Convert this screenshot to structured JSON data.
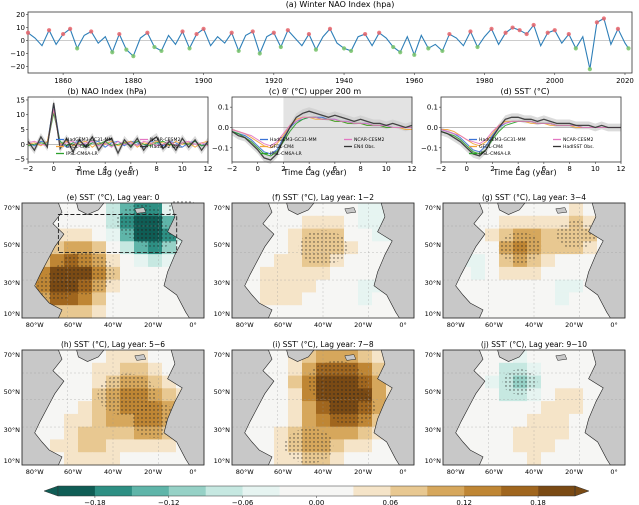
{
  "colors": {
    "line_main": "#2e7fb8",
    "pos_marker": "#e8646a",
    "neg_marker": "#79c36a",
    "hadgem": "#3a73d6",
    "gfdl": "#f2a33a",
    "ipsl": "#2ca02c",
    "ncar": "#e377c2",
    "obs": "#333333",
    "shade": "#cccccc",
    "land": "#c8c8c8",
    "ocean_neutral": "#f4f4f1",
    "brown": "#a0661e",
    "teal": "#2d8f83"
  },
  "panels": {
    "a": {
      "title": "(a) Winter NAO Index (hpa)",
      "x_ticks": [
        "1860",
        "1880",
        "1900",
        "1920",
        "1940",
        "1960",
        "1980",
        "2000",
        "2020"
      ],
      "y_ticks": [
        "20",
        "10",
        "0",
        "−10",
        "−20"
      ]
    },
    "b": {
      "title": "(b) NAO Index (hPa)",
      "xlabel": "Time Lag (year)",
      "x_ticks": [
        "−2",
        "0",
        "2",
        "4",
        "6",
        "8",
        "10",
        "12"
      ],
      "y_ticks": [
        "15",
        "10",
        "5",
        "0",
        "−5"
      ],
      "legend": [
        "HadGEM3-GC31-MM",
        "GFDL-CM4",
        "IPSL-CM6A-LR",
        "NCAR-CESM2",
        "HadSLP2 Obs."
      ]
    },
    "c": {
      "title": "(c) θ′ (°C) upper 200 m",
      "xlabel": "Time Lag (year)",
      "x_ticks": [
        "−2",
        "0",
        "2",
        "4",
        "6",
        "8",
        "10",
        "12"
      ],
      "y_ticks": [
        "0.1",
        "0.0",
        "−0.1"
      ],
      "legend": [
        "HadGEM3-GC31-MM",
        "GFDL-CM4",
        "IPSL-CM6A-LR",
        "NCAR-CESM2",
        "EN4 Obs."
      ]
    },
    "d": {
      "title": "(d) SST′ (°C)",
      "xlabel": "Time Lag (year)",
      "x_ticks": [
        "−2",
        "0",
        "2",
        "4",
        "6",
        "8",
        "10",
        "12"
      ],
      "y_ticks": [
        "0.1",
        "0.0",
        "−0.1"
      ],
      "legend": [
        "HadGEM3-GC31-MM",
        "GFDL-CM4",
        "IPSL-CM6A-LR",
        "NCAR-CESM2",
        "HadISST Obs."
      ]
    }
  },
  "maps": [
    {
      "title": "(e) SST′ (°C), Lag year: 0"
    },
    {
      "title": "(f) SST′ (°C), Lag year: 1−2"
    },
    {
      "title": "(g) SST′ (°C), Lag year: 3−4"
    },
    {
      "title": "(h) SST′ (°C), Lag year: 5−6"
    },
    {
      "title": "(i) SST′ (°C), Lag year: 7−8"
    },
    {
      "title": "(j) SST′ (°C), Lag year: 9−10"
    }
  ],
  "map_lat_ticks": [
    "70°N",
    "50°N",
    "30°N",
    "10°N"
  ],
  "map_lon_ticks": [
    "80°W",
    "60°W",
    "40°W",
    "20°W",
    "0°"
  ],
  "colorbar": {
    "ticks": [
      "−0.18",
      "−0.12",
      "−0.06",
      "0.00",
      "0.06",
      "0.12",
      "0.18"
    ],
    "colors": [
      "#0f5d55",
      "#2d8f83",
      "#5fb5a9",
      "#96d1c6",
      "#c6e8e1",
      "#e6f4f1",
      "#f6f6f4",
      "#f6f6f4",
      "#f5e4c8",
      "#e8c891",
      "#d6a75c",
      "#bf8634",
      "#a0661e",
      "#7a4a14"
    ]
  },
  "chart_data": [
    {
      "type": "line",
      "title": "(a) Winter NAO Index (hpa)",
      "xlim": [
        1850,
        2022
      ],
      "ylim": [
        -25,
        22
      ],
      "x": [
        1850,
        1852,
        1854,
        1856,
        1858,
        1860,
        1862,
        1864,
        1866,
        1868,
        1870,
        1872,
        1874,
        1876,
        1878,
        1880,
        1882,
        1884,
        1886,
        1888,
        1890,
        1892,
        1894,
        1896,
        1898,
        1900,
        1902,
        1904,
        1906,
        1908,
        1910,
        1912,
        1914,
        1916,
        1918,
        1920,
        1922,
        1924,
        1926,
        1928,
        1930,
        1932,
        1934,
        1936,
        1938,
        1940,
        1942,
        1944,
        1946,
        1948,
        1950,
        1952,
        1954,
        1956,
        1958,
        1960,
        1962,
        1964,
        1966,
        1968,
        1970,
        1972,
        1974,
        1976,
        1978,
        1980,
        1982,
        1984,
        1986,
        1988,
        1990,
        1992,
        1994,
        1996,
        1998,
        2000,
        2002,
        2004,
        2006,
        2008,
        2010,
        2012,
        2014,
        2016,
        2018,
        2020,
        2021
      ],
      "values": [
        6,
        2,
        -4,
        8,
        -3,
        5,
        9,
        -6,
        4,
        7,
        -2,
        3,
        -9,
        5,
        -7,
        -12,
        2,
        6,
        -5,
        -8,
        4,
        -3,
        7,
        -6,
        5,
        9,
        -4,
        3,
        -2,
        6,
        -8,
        4,
        7,
        -10,
        3,
        6,
        -5,
        8,
        2,
        -4,
        5,
        -7,
        3,
        9,
        -2,
        -6,
        -8,
        3,
        5,
        -4,
        6,
        2,
        -5,
        -9,
        3,
        -11,
        4,
        -6,
        -3,
        -8,
        5,
        2,
        -4,
        7,
        -5,
        3,
        9,
        -3,
        6,
        10,
        8,
        5,
        12,
        -4,
        6,
        8,
        -2,
        5,
        -6,
        3,
        -22,
        14,
        17,
        -3,
        9,
        -2,
        -6
      ]
    },
    {
      "type": "line",
      "title": "(b) NAO Index (hPa)",
      "xlabel": "Time Lag (year)",
      "xlim": [
        -2,
        12
      ],
      "ylim": [
        -6,
        16
      ],
      "x": [
        -2,
        -1.5,
        -1,
        -0.5,
        0,
        0.5,
        1,
        1.5,
        2,
        2.5,
        3,
        3.5,
        4,
        4.5,
        5,
        5.5,
        6,
        6.5,
        7,
        7.5,
        8,
        8.5,
        9,
        9.5,
        10,
        10.5,
        11,
        11.5,
        12
      ],
      "series": [
        {
          "name": "HadGEM3-GC31-MM",
          "values": [
            0.5,
            -0.5,
            1,
            0.5,
            13.5,
            0.5,
            -1,
            0.5,
            1,
            -0.5,
            0.5,
            1,
            -1,
            0.5,
            1,
            -0.5,
            1,
            0.5,
            -1,
            1,
            0.5,
            -0.5,
            1,
            0.5,
            -1,
            0.5,
            1,
            -0.5,
            0.5
          ]
        },
        {
          "name": "GFDL-CM4",
          "values": [
            0,
            0.5,
            -0.5,
            1,
            11,
            0,
            1,
            -0.5,
            0.5,
            1,
            -1,
            0.5,
            0,
            1,
            -0.5,
            0.5,
            1,
            -1,
            0.5,
            0,
            1,
            0.5,
            -0.5,
            1,
            0,
            0.5,
            -1,
            0.5,
            1
          ]
        },
        {
          "name": "IPSL-CM6A-LR",
          "values": [
            -0.5,
            0,
            0.5,
            0,
            10.5,
            1,
            -0.5,
            0.5,
            0,
            -1,
            0.5,
            0,
            1,
            -0.5,
            0,
            0.5,
            -0.5,
            1,
            0,
            -0.5,
            0.5,
            1,
            0,
            -0.5,
            0.5,
            0,
            1,
            -0.5,
            0
          ]
        },
        {
          "name": "NCAR-CESM2",
          "values": [
            0.5,
            1,
            0,
            -0.5,
            12,
            -0.5,
            0.5,
            1,
            -0.5,
            0.5,
            1,
            -0.5,
            0.5,
            -1,
            1,
            0,
            0.5,
            -0.5,
            1,
            0.5,
            -0.5,
            0,
            1,
            -0.5,
            0.5,
            1,
            0,
            0.5,
            -0.5
          ]
        },
        {
          "name": "HadSLP2 Obs.",
          "values": [
            1,
            -2,
            2.5,
            -1,
            14,
            -1.5,
            2,
            -2.5,
            1.5,
            -1,
            2.5,
            -2,
            1,
            2,
            -3,
            1.5,
            -1,
            2,
            -2,
            1,
            2.5,
            -1.5,
            1,
            -2,
            2,
            -1,
            1.5,
            -2,
            1
          ]
        }
      ]
    },
    {
      "type": "line",
      "title": "(c) θ′ (°C) upper 200 m",
      "xlabel": "Time Lag (year)",
      "xlim": [
        -2,
        12
      ],
      "ylim": [
        -0.17,
        0.15
      ],
      "x": [
        -2,
        -1.5,
        -1,
        -0.5,
        0,
        0.5,
        1,
        1.5,
        2,
        2.5,
        3,
        3.5,
        4,
        4.5,
        5,
        5.5,
        6,
        6.5,
        7,
        7.5,
        8,
        8.5,
        9,
        9.5,
        10,
        10.5,
        11,
        11.5,
        12
      ],
      "series": [
        {
          "name": "HadGEM3-GC31-MM",
          "values": [
            -0.02,
            -0.03,
            -0.04,
            -0.06,
            -0.09,
            -0.12,
            -0.13,
            -0.11,
            -0.05,
            0.0,
            0.03,
            0.04,
            0.05,
            0.05,
            0.05,
            0.04,
            0.04,
            0.03,
            0.03,
            0.02,
            0.02,
            0.02,
            0.01,
            0.01,
            0.01,
            0.0,
            0.0,
            0.0,
            0.0
          ]
        },
        {
          "name": "GFDL-CM4",
          "values": [
            -0.01,
            -0.02,
            -0.03,
            -0.05,
            -0.07,
            -0.09,
            -0.1,
            -0.08,
            -0.04,
            0.01,
            0.04,
            0.05,
            0.05,
            0.04,
            0.04,
            0.04,
            0.03,
            0.03,
            0.02,
            0.02,
            0.02,
            0.01,
            0.01,
            0.01,
            0.0,
            0.0,
            0.0,
            -0.01,
            -0.01
          ]
        },
        {
          "name": "IPSL-CM6A-LR",
          "values": [
            -0.02,
            -0.03,
            -0.05,
            -0.07,
            -0.1,
            -0.13,
            -0.14,
            -0.12,
            -0.07,
            -0.02,
            0.02,
            0.04,
            0.05,
            0.05,
            0.04,
            0.04,
            0.03,
            0.03,
            0.02,
            0.02,
            0.02,
            0.01,
            0.01,
            0.01,
            0.0,
            0.0,
            0.0,
            0.0,
            0.0
          ]
        },
        {
          "name": "NCAR-CESM2",
          "values": [
            -0.01,
            -0.02,
            -0.03,
            -0.04,
            -0.06,
            -0.08,
            -0.09,
            -0.07,
            -0.03,
            0.01,
            0.03,
            0.05,
            0.05,
            0.05,
            0.04,
            0.04,
            0.04,
            0.03,
            0.03,
            0.02,
            0.02,
            0.02,
            0.01,
            0.01,
            0.01,
            0.0,
            0.0,
            0.0,
            0.0
          ]
        },
        {
          "name": "EN4 Obs.",
          "values": [
            -0.02,
            -0.04,
            -0.05,
            -0.08,
            -0.11,
            -0.15,
            -0.16,
            -0.13,
            -0.06,
            0.0,
            0.05,
            0.07,
            0.08,
            0.07,
            0.06,
            0.05,
            0.06,
            0.05,
            0.04,
            0.03,
            0.04,
            0.03,
            0.02,
            0.02,
            0.01,
            0.02,
            0.01,
            0.0,
            0.01
          ]
        }
      ]
    },
    {
      "type": "line",
      "title": "(d) SST′ (°C)",
      "xlabel": "Time Lag (year)",
      "xlim": [
        -2,
        12
      ],
      "ylim": [
        -0.17,
        0.15
      ],
      "x": [
        -2,
        -1.5,
        -1,
        -0.5,
        0,
        0.5,
        1,
        1.5,
        2,
        2.5,
        3,
        3.5,
        4,
        4.5,
        5,
        5.5,
        6,
        6.5,
        7,
        7.5,
        8,
        8.5,
        9,
        9.5,
        10,
        10.5,
        11,
        11.5,
        12
      ],
      "series": [
        {
          "name": "HadGEM3-GC31-MM",
          "values": [
            -0.01,
            -0.02,
            -0.03,
            -0.05,
            -0.08,
            -0.11,
            -0.12,
            -0.09,
            -0.04,
            0.0,
            0.02,
            0.03,
            0.03,
            0.03,
            0.03,
            0.02,
            0.02,
            0.02,
            0.01,
            0.01,
            0.01,
            0.01,
            0.0,
            0.0,
            0.0,
            0.0,
            0.0,
            0.0,
            0.0
          ]
        },
        {
          "name": "GFDL-CM4",
          "values": [
            -0.01,
            -0.01,
            -0.02,
            -0.04,
            -0.06,
            -0.08,
            -0.09,
            -0.07,
            -0.03,
            0.01,
            0.03,
            0.03,
            0.03,
            0.03,
            0.02,
            0.02,
            0.02,
            0.01,
            0.01,
            0.01,
            0.01,
            0.0,
            0.0,
            0.0,
            0.0,
            0.0,
            0.0,
            0.0,
            0.0
          ]
        },
        {
          "name": "IPSL-CM6A-LR",
          "values": [
            -0.02,
            -0.03,
            -0.04,
            -0.06,
            -0.09,
            -0.12,
            -0.13,
            -0.11,
            -0.06,
            -0.02,
            0.01,
            0.02,
            0.03,
            0.03,
            0.03,
            0.02,
            0.02,
            0.02,
            0.01,
            0.01,
            0.01,
            0.01,
            0.0,
            0.0,
            0.0,
            0.0,
            0.0,
            0.0,
            0.0
          ]
        },
        {
          "name": "NCAR-CESM2",
          "values": [
            -0.01,
            -0.02,
            -0.03,
            -0.04,
            -0.06,
            -0.07,
            -0.08,
            -0.06,
            -0.02,
            0.01,
            0.02,
            0.03,
            0.03,
            0.03,
            0.03,
            0.02,
            0.02,
            0.02,
            0.01,
            0.01,
            0.01,
            0.01,
            0.0,
            0.0,
            0.0,
            0.0,
            0.0,
            0.0,
            0.0
          ]
        },
        {
          "name": "HadISST Obs.",
          "values": [
            -0.02,
            -0.03,
            -0.05,
            -0.07,
            -0.1,
            -0.13,
            -0.14,
            -0.11,
            -0.05,
            0.0,
            0.04,
            0.05,
            0.05,
            0.04,
            0.04,
            0.03,
            0.04,
            0.03,
            0.02,
            0.02,
            0.02,
            0.01,
            0.01,
            0.01,
            0.0,
            0.01,
            0.0,
            0.0,
            0.0
          ]
        }
      ]
    }
  ]
}
